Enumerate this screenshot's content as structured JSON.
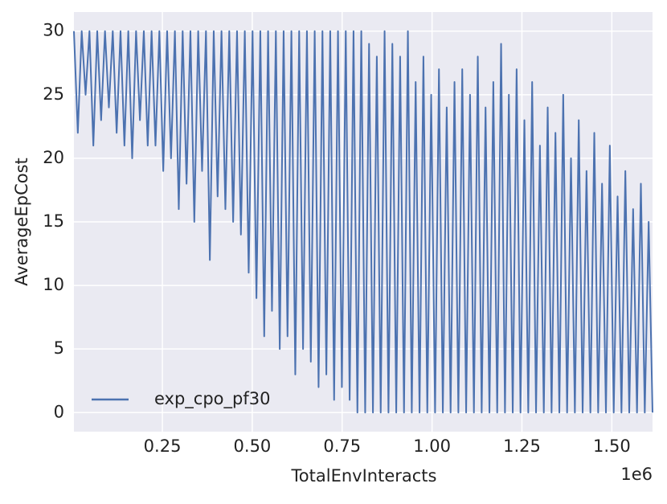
{
  "chart_data": {
    "type": "line",
    "xlabel": "TotalEnvInteracts",
    "ylabel": "AverageEpCost",
    "x_offset_label": "1e6",
    "x": [
      4000,
      14800,
      25600,
      36400,
      47200,
      58000,
      68800,
      79600,
      90400,
      101200,
      112000,
      122800,
      133600,
      144400,
      155200,
      166000,
      176800,
      187600,
      198400,
      209200,
      220000,
      230800,
      241600,
      252400,
      263200,
      274000,
      284800,
      295600,
      306400,
      317200,
      328000,
      338800,
      349600,
      360400,
      371200,
      382000,
      392800,
      403600,
      414400,
      425200,
      436000,
      446800,
      457600,
      468400,
      479200,
      490000,
      500800,
      511600,
      522400,
      533200,
      544000,
      554800,
      565600,
      576400,
      587200,
      598000,
      608800,
      619600,
      630400,
      641200,
      652000,
      662800,
      673600,
      684400,
      695200,
      706000,
      716800,
      727600,
      738400,
      749200,
      760000,
      770800,
      781600,
      792400,
      803200,
      814000,
      824800,
      835600,
      846400,
      857200,
      868000,
      878800,
      889600,
      900400,
      911200,
      922000,
      932800,
      943600,
      954400,
      965200,
      976000,
      986800,
      997600,
      1008400,
      1019200,
      1030000,
      1040800,
      1051600,
      1062400,
      1073200,
      1084000,
      1094800,
      1105600,
      1116400,
      1127200,
      1138000,
      1148800,
      1159600,
      1170400,
      1181200,
      1192000,
      1202800,
      1213600,
      1224400,
      1235200,
      1246000,
      1256800,
      1267600,
      1278400,
      1289200,
      1300000,
      1310800,
      1321600,
      1332400,
      1343200,
      1354000,
      1364800,
      1375600,
      1386400,
      1397200,
      1408000,
      1418800,
      1429600,
      1440400,
      1451200,
      1462000,
      1472800,
      1483600,
      1494400,
      1505200,
      1516000,
      1526800,
      1537600,
      1548400,
      1559200,
      1570000,
      1580800,
      1591600,
      1602400,
      1613200
    ],
    "series": [
      {
        "name": "exp_cpo_pf30",
        "color": "#4c72b0",
        "values": [
          30,
          22,
          30,
          25,
          30,
          21,
          30,
          23,
          30,
          24,
          30,
          22,
          30,
          21,
          30,
          20,
          30,
          23,
          30,
          21,
          30,
          21,
          30,
          19,
          30,
          20,
          30,
          16,
          30,
          18,
          30,
          15,
          30,
          19,
          30,
          12,
          30,
          17,
          30,
          16,
          30,
          15,
          30,
          14,
          30,
          11,
          30,
          9,
          30,
          6,
          30,
          8,
          30,
          5,
          30,
          6,
          30,
          3,
          30,
          5,
          30,
          4,
          30,
          2,
          30,
          3,
          30,
          1,
          30,
          2,
          30,
          1,
          30,
          0,
          30,
          0,
          29,
          0,
          28,
          0,
          30,
          0,
          29,
          0,
          28,
          0,
          30,
          0,
          26,
          0,
          28,
          0,
          25,
          0,
          27,
          0,
          24,
          0,
          26,
          0,
          27,
          0,
          25,
          0,
          28,
          0,
          24,
          0,
          26,
          0,
          29,
          0,
          25,
          0,
          27,
          0,
          23,
          0,
          26,
          0,
          21,
          0,
          24,
          0,
          22,
          0,
          25,
          0,
          20,
          0,
          23,
          0,
          19,
          0,
          22,
          0,
          18,
          0,
          21,
          0,
          17,
          0,
          19,
          0,
          16,
          0,
          18,
          0,
          15,
          0
        ]
      }
    ],
    "xlim": [
      4000,
      1613200
    ],
    "ylim": [
      -1.5,
      31.5
    ],
    "xticks": [
      {
        "value": 250000,
        "label": "0.25"
      },
      {
        "value": 500000,
        "label": "0.50"
      },
      {
        "value": 750000,
        "label": "0.75"
      },
      {
        "value": 1000000,
        "label": "1.00"
      },
      {
        "value": 1250000,
        "label": "1.25"
      },
      {
        "value": 1500000,
        "label": "1.50"
      }
    ],
    "yticks": [
      0,
      5,
      10,
      15,
      20,
      25,
      30
    ],
    "grid": true,
    "legend": "lower left"
  }
}
